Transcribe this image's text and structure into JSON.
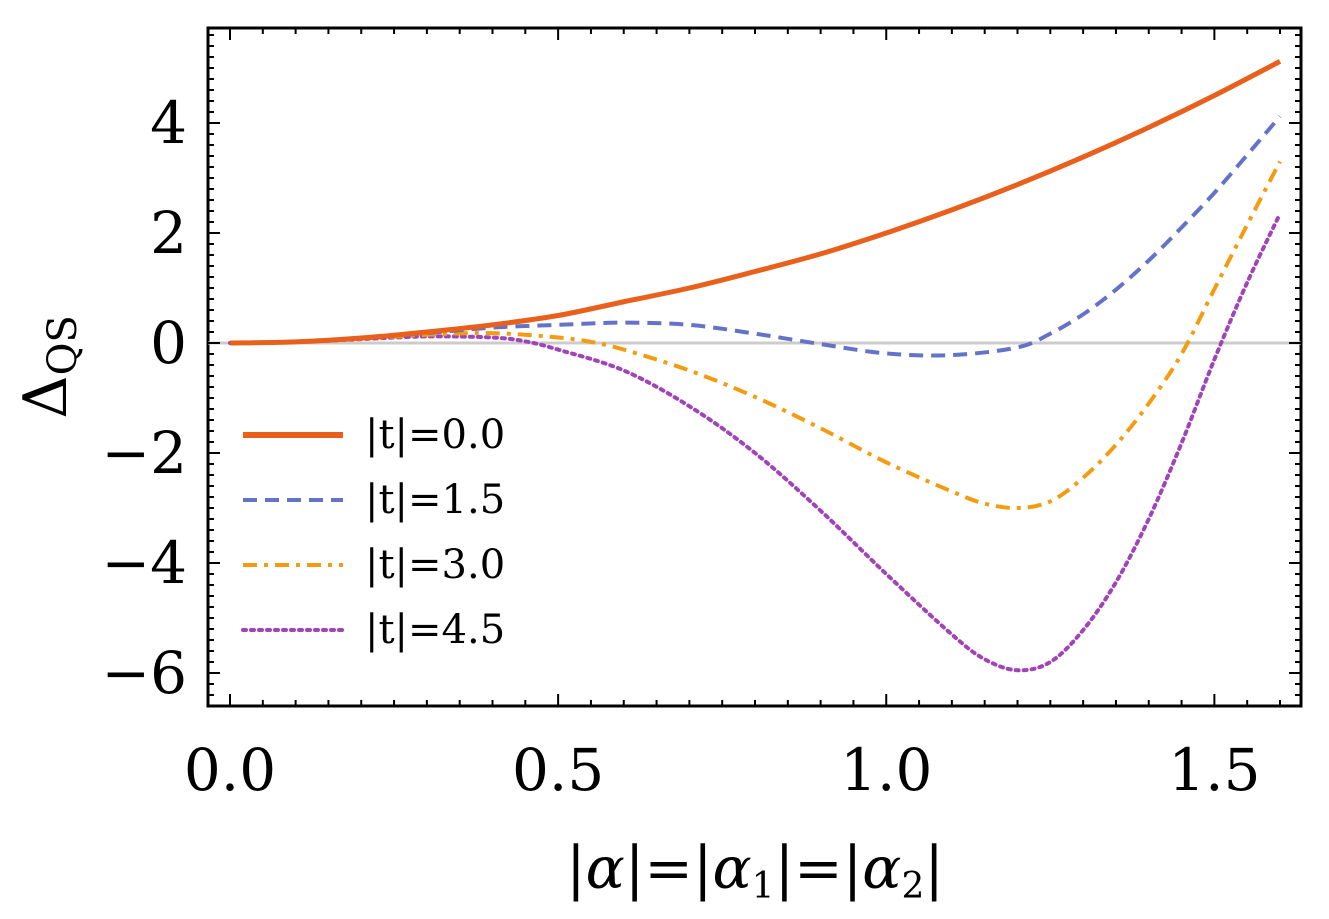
{
  "chart_data": {
    "type": "line",
    "title": "",
    "xlabel": "|α|=|α₁|=|α₂|",
    "xlabel_parts": {
      "main": "|α|=|α",
      "sub1": "1",
      "mid": "|=|α",
      "sub2": "2",
      "end": "|"
    },
    "ylabel": "ΔQS",
    "ylabel_parts": {
      "main": "Δ",
      "sub": "QS"
    },
    "xlim": [
      0,
      1.6
    ],
    "ylim": [
      -6.5,
      5.7
    ],
    "xticks": [
      0.0,
      0.5,
      1.0,
      1.5
    ],
    "xtick_labels": [
      "0.0",
      "0.5",
      "1.0",
      "1.5"
    ],
    "yticks": [
      -6,
      -4,
      -2,
      0,
      2,
      4
    ],
    "ytick_labels": [
      "−6",
      "−4",
      "−2",
      "0",
      "2",
      "4"
    ],
    "legend_position": "left-middle",
    "series": [
      {
        "name": "|t|=0.0",
        "color": "#e8601c",
        "dash": "solid",
        "x": [
          0.0,
          0.1,
          0.2,
          0.3,
          0.4,
          0.5,
          0.6,
          0.7,
          0.8,
          0.9,
          1.0,
          1.1,
          1.2,
          1.3,
          1.4,
          1.5,
          1.6
        ],
        "y": [
          0.0,
          0.02,
          0.09,
          0.2,
          0.33,
          0.5,
          0.75,
          1.0,
          1.3,
          1.62,
          2.0,
          2.42,
          2.88,
          3.38,
          3.92,
          4.5,
          5.12
        ]
      },
      {
        "name": "|t|=1.5",
        "color": "#6472c8",
        "dash": "dashed",
        "x": [
          0.0,
          0.1,
          0.2,
          0.3,
          0.4,
          0.5,
          0.6,
          0.7,
          0.8,
          0.9,
          1.0,
          1.1,
          1.2,
          1.25,
          1.3,
          1.35,
          1.4,
          1.45,
          1.5,
          1.55,
          1.6
        ],
        "y": [
          0.0,
          0.02,
          0.09,
          0.18,
          0.28,
          0.33,
          0.37,
          0.33,
          0.17,
          -0.02,
          -0.19,
          -0.22,
          -0.08,
          0.17,
          0.52,
          0.97,
          1.5,
          2.1,
          2.73,
          3.42,
          4.12
        ]
      },
      {
        "name": "|t|=3.0",
        "color": "#f39c12",
        "dash": "dashdot",
        "x": [
          0.0,
          0.1,
          0.2,
          0.3,
          0.4,
          0.5,
          0.55,
          0.6,
          0.7,
          0.8,
          0.9,
          1.0,
          1.1,
          1.15,
          1.2,
          1.25,
          1.3,
          1.35,
          1.4,
          1.45,
          1.5,
          1.55,
          1.6
        ],
        "y": [
          0.0,
          0.02,
          0.08,
          0.15,
          0.18,
          0.1,
          0.02,
          -0.12,
          -0.5,
          -0.98,
          -1.55,
          -2.17,
          -2.7,
          -2.92,
          -3.0,
          -2.88,
          -2.45,
          -1.85,
          -1.1,
          -0.2,
          0.98,
          2.15,
          3.3
        ]
      },
      {
        "name": "|t|=4.5",
        "color": "#a044b8",
        "dash": "dotted",
        "x": [
          0.0,
          0.1,
          0.2,
          0.3,
          0.4,
          0.45,
          0.5,
          0.6,
          0.7,
          0.8,
          0.9,
          1.0,
          1.1,
          1.15,
          1.2,
          1.25,
          1.3,
          1.35,
          1.4,
          1.45,
          1.5,
          1.55,
          1.6
        ],
        "y": [
          0.0,
          0.02,
          0.07,
          0.12,
          0.1,
          0.03,
          -0.12,
          -0.5,
          -1.15,
          -2.0,
          -3.05,
          -4.2,
          -5.3,
          -5.75,
          -5.95,
          -5.8,
          -5.22,
          -4.35,
          -3.2,
          -1.82,
          -0.3,
          1.1,
          2.35
        ]
      }
    ]
  }
}
